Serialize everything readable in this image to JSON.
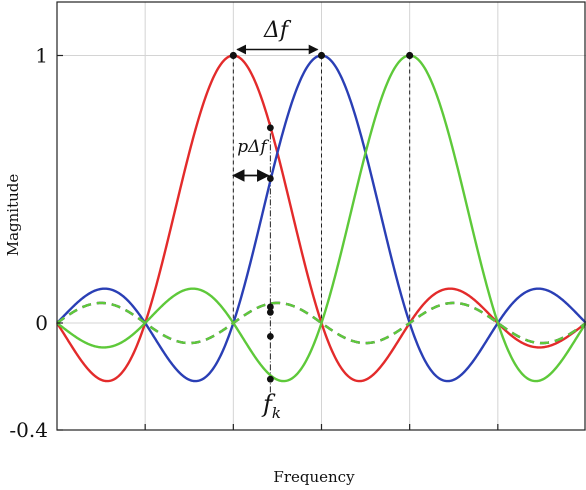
{
  "chart_data": {
    "type": "line",
    "title": "",
    "xlabel": "Frequency",
    "ylabel": "Magnitude",
    "xlim": [
      -3,
      3
    ],
    "ylim": [
      -0.4,
      1.2
    ],
    "yticks": [
      {
        "value": 1,
        "label": "1"
      },
      {
        "value": 0,
        "label": "0"
      },
      {
        "value": -0.4,
        "label": "-0.4"
      }
    ],
    "x_gridlines": [
      -2,
      -1,
      0,
      1,
      2
    ],
    "grid": true,
    "legend": "none",
    "colors": {
      "red": "#e32b2b",
      "blue": "#2a3fb5",
      "green": "#5ec93a"
    },
    "series": [
      {
        "color": "red",
        "style": "solid",
        "center": -1,
        "peak": 1,
        "function": "sinc"
      },
      {
        "color": "blue",
        "style": "solid",
        "center": 0,
        "peak": 1,
        "function": "sinc"
      },
      {
        "color": "green",
        "style": "solid",
        "center": 1,
        "peak": 1,
        "function": "sinc"
      },
      {
        "color": "red",
        "style": "dashed",
        "center": -1,
        "peak": 1,
        "function": "sinc-sin(pi*x)"
      },
      {
        "color": "blue",
        "style": "dashed",
        "center": 0,
        "peak": 1,
        "function": "sinc-sin(pi*x)"
      },
      {
        "color": "green",
        "style": "dashed",
        "center": 1,
        "peak": 1,
        "function": "sinc-sin(pi*x)"
      }
    ],
    "annotations": {
      "delta_f": {
        "label": "Δf",
        "x_from": -1,
        "x_to": 0,
        "y": 1
      },
      "p_delta_f": {
        "label": "pΔf",
        "x_from": -1,
        "x_to": -0.58,
        "y": 0.57
      },
      "f_k": {
        "label": "f",
        "subscript": "k",
        "x": -0.58
      },
      "f_k_points": [
        0.73,
        0.54,
        0.06,
        0.04,
        -0.05,
        -0.21
      ]
    }
  }
}
